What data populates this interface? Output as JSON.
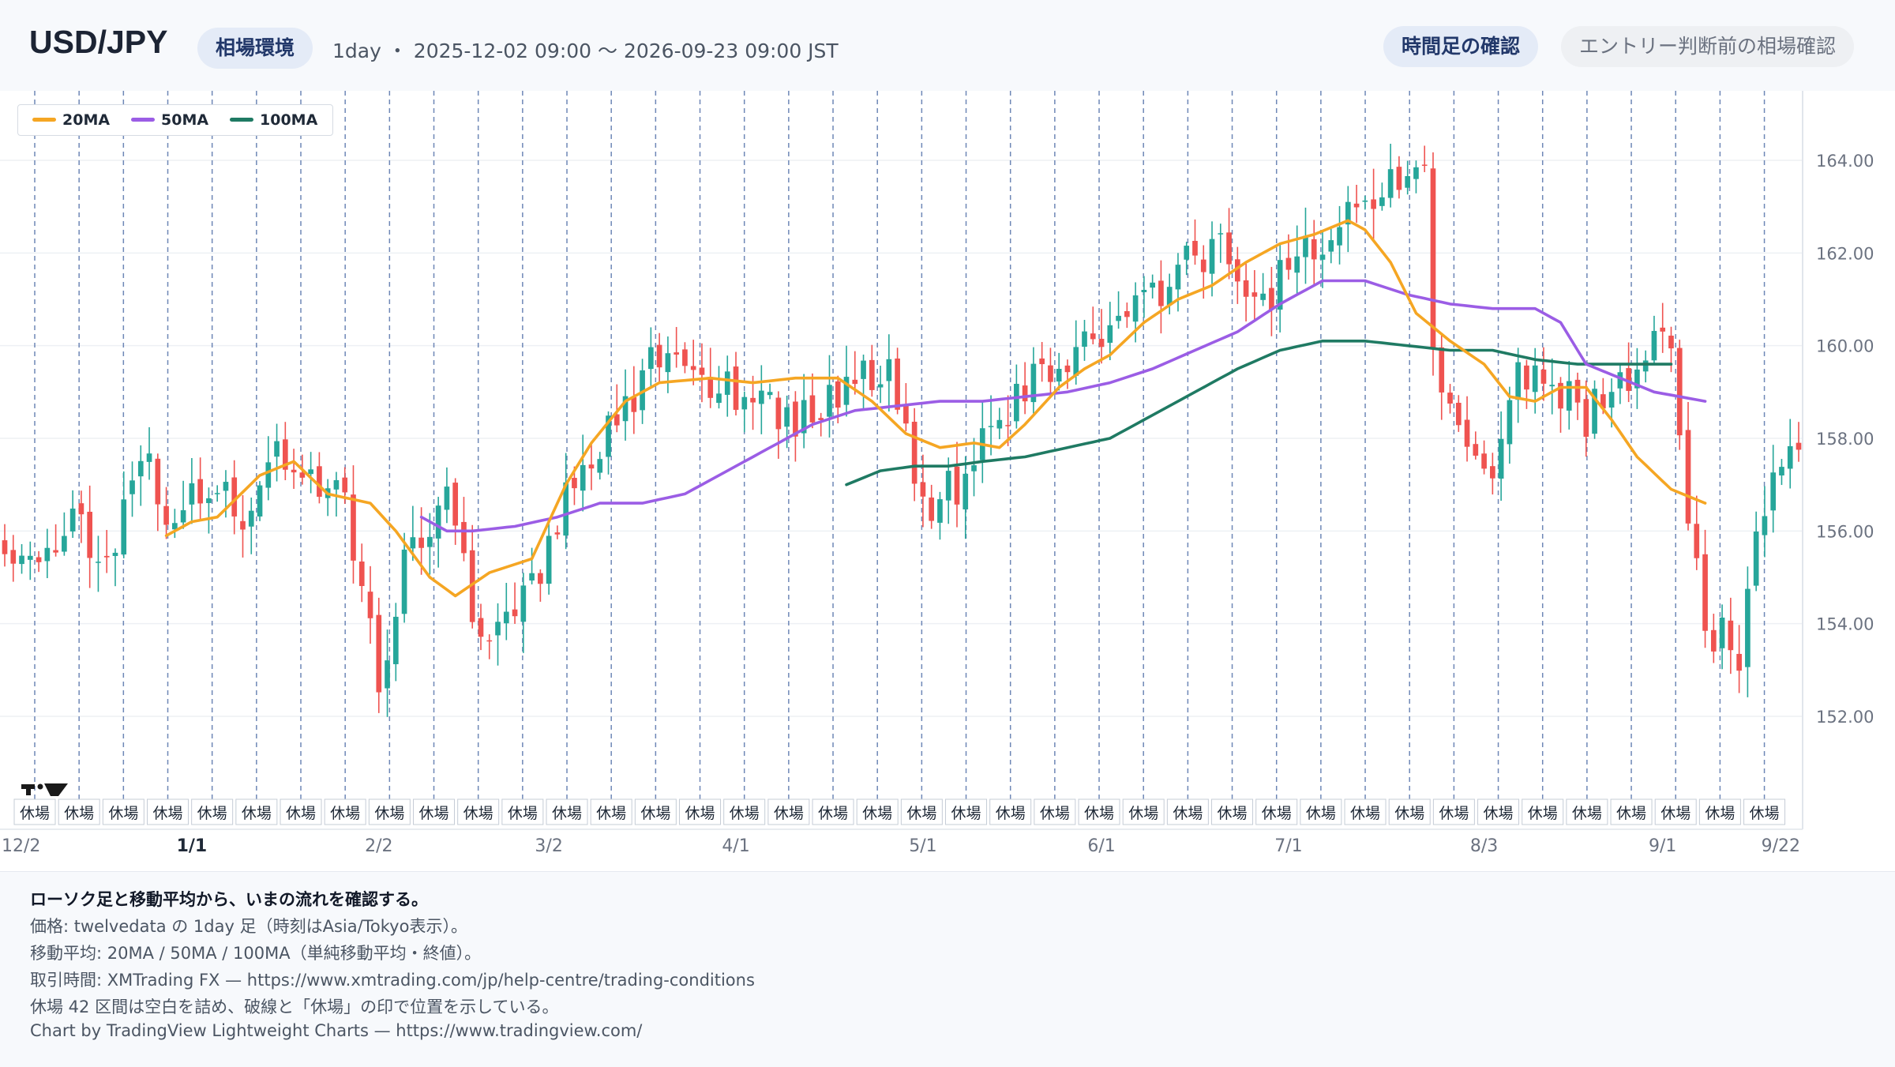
{
  "header": {
    "symbol": "USD/JPY",
    "env_label": "相場環境",
    "meta": "1day ・ 2025-12-02 09:00 〜 2026-09-23 09:00 JST",
    "timeframe_button": "時間足の確認",
    "entry_button": "エントリー判断前の相場確認"
  },
  "footer": {
    "heading": "ローソク足と移動平均から、いまの流れを確認する。",
    "line1": "価格: twelvedata の 1day 足（時刻はAsia/Tokyo表示）。",
    "line2": "移動平均: 20MA / 50MA / 100MA（単純移動平均・終値）。",
    "line3": "取引時間: XMTrading FX — https://www.xmtrading.com/jp/help-centre/trading-conditions",
    "line4": "休場 42 区間は空白を詰め、破線と「休場」の印で位置を示している。",
    "line5": "Chart by TradingView Lightweight Charts — https://www.tradingview.com/"
  },
  "colors": {
    "up": "#26a69a",
    "down": "#ef5350",
    "ma20": "#f5a623",
    "ma50": "#9b5de5",
    "ma100": "#1f7a63",
    "break_line": "#4a6aa5"
  },
  "chart_data": {
    "type": "candlestick",
    "y_range": [
      150.5,
      165.5
    ],
    "y_ticks": [
      "152.00",
      "154.00",
      "156.00",
      "158.00",
      "160.00",
      "162.00",
      "164.00"
    ],
    "x_labels": [
      {
        "label": "12/2",
        "index": 0,
        "bold": false
      },
      {
        "label": "1/1",
        "index": 22,
        "bold": true
      },
      {
        "label": "2/2",
        "index": 44,
        "bold": false
      },
      {
        "label": "3/2",
        "index": 64,
        "bold": false
      },
      {
        "label": "4/1",
        "index": 86,
        "bold": false
      },
      {
        "label": "5/1",
        "index": 108,
        "bold": false
      },
      {
        "label": "6/1",
        "index": 129,
        "bold": false
      },
      {
        "label": "7/1",
        "index": 151,
        "bold": false
      },
      {
        "label": "8/3",
        "index": 174,
        "bold": false
      },
      {
        "label": "9/1",
        "index": 195,
        "bold": false
      },
      {
        "label": "9/22",
        "index": 210,
        "bold": false
      }
    ],
    "bar_count": 212,
    "closed_label": "休場",
    "closed_count": 42,
    "close_anchors": [
      [
        0,
        156.0
      ],
      [
        4,
        155.0
      ],
      [
        8,
        156.6
      ],
      [
        12,
        155.2
      ],
      [
        16,
        157.5
      ],
      [
        20,
        156.2
      ],
      [
        24,
        156.9
      ],
      [
        28,
        156.3
      ],
      [
        32,
        157.8
      ],
      [
        36,
        157.2
      ],
      [
        40,
        156.5
      ],
      [
        44,
        153.0
      ],
      [
        48,
        155.8
      ],
      [
        52,
        156.8
      ],
      [
        56,
        153.5
      ],
      [
        60,
        154.0
      ],
      [
        64,
        155.8
      ],
      [
        68,
        157.5
      ],
      [
        72,
        158.4
      ],
      [
        76,
        159.5
      ],
      [
        80,
        159.6
      ],
      [
        84,
        159.2
      ],
      [
        88,
        159.0
      ],
      [
        92,
        158.5
      ],
      [
        96,
        158.6
      ],
      [
        100,
        159.3
      ],
      [
        104,
        159.6
      ],
      [
        108,
        156.6
      ],
      [
        112,
        157.0
      ],
      [
        116,
        158.4
      ],
      [
        120,
        159.1
      ],
      [
        124,
        159.6
      ],
      [
        128,
        160.2
      ],
      [
        132,
        160.5
      ],
      [
        136,
        161.3
      ],
      [
        140,
        161.8
      ],
      [
        144,
        162.2
      ],
      [
        148,
        160.8
      ],
      [
        152,
        162.0
      ],
      [
        156,
        162.4
      ],
      [
        160,
        163.0
      ],
      [
        164,
        163.8
      ],
      [
        167,
        163.6
      ],
      [
        168,
        160.0
      ],
      [
        170,
        158.4
      ],
      [
        174,
        157.0
      ],
      [
        178,
        159.4
      ],
      [
        182,
        159.3
      ],
      [
        186,
        158.5
      ],
      [
        190,
        159.2
      ],
      [
        194,
        160.1
      ],
      [
        196,
        159.8
      ],
      [
        198,
        156.0
      ],
      [
        200,
        154.0
      ],
      [
        204,
        153.4
      ],
      [
        206,
        155.5
      ],
      [
        208,
        157.3
      ],
      [
        211,
        158.0
      ]
    ],
    "ma20": {
      "name": "20MA",
      "points": [
        [
          19,
          155.9
        ],
        [
          22,
          156.2
        ],
        [
          25,
          156.3
        ],
        [
          30,
          157.2
        ],
        [
          34,
          157.5
        ],
        [
          38,
          156.8
        ],
        [
          43,
          156.6
        ],
        [
          46,
          156.0
        ],
        [
          50,
          155.0
        ],
        [
          53,
          154.6
        ],
        [
          57,
          155.1
        ],
        [
          62,
          155.4
        ],
        [
          66,
          157.0
        ],
        [
          69,
          157.9
        ],
        [
          73,
          158.8
        ],
        [
          77,
          159.2
        ],
        [
          83,
          159.3
        ],
        [
          88,
          159.2
        ],
        [
          93,
          159.3
        ],
        [
          98,
          159.3
        ],
        [
          102,
          158.8
        ],
        [
          106,
          158.1
        ],
        [
          110,
          157.8
        ],
        [
          114,
          157.9
        ],
        [
          117,
          157.8
        ],
        [
          120,
          158.3
        ],
        [
          124,
          159.1
        ],
        [
          127,
          159.5
        ],
        [
          130,
          159.8
        ],
        [
          134,
          160.5
        ],
        [
          138,
          161.0
        ],
        [
          142,
          161.3
        ],
        [
          146,
          161.8
        ],
        [
          150,
          162.2
        ],
        [
          154,
          162.4
        ],
        [
          158,
          162.7
        ],
        [
          160,
          162.5
        ],
        [
          163,
          161.8
        ],
        [
          166,
          160.7
        ],
        [
          170,
          160.1
        ],
        [
          174,
          159.6
        ],
        [
          177,
          158.9
        ],
        [
          180,
          158.8
        ],
        [
          183,
          159.1
        ],
        [
          186,
          159.1
        ],
        [
          189,
          158.4
        ],
        [
          192,
          157.6
        ],
        [
          196,
          156.9
        ],
        [
          200,
          156.6
        ]
      ]
    },
    "ma50": {
      "name": "50MA",
      "points": [
        [
          49,
          156.3
        ],
        [
          52,
          156.0
        ],
        [
          55,
          156.0
        ],
        [
          60,
          156.1
        ],
        [
          65,
          156.3
        ],
        [
          70,
          156.6
        ],
        [
          75,
          156.6
        ],
        [
          80,
          156.8
        ],
        [
          85,
          157.3
        ],
        [
          90,
          157.8
        ],
        [
          95,
          158.3
        ],
        [
          100,
          158.6
        ],
        [
          105,
          158.7
        ],
        [
          110,
          158.8
        ],
        [
          115,
          158.8
        ],
        [
          120,
          158.9
        ],
        [
          125,
          159.0
        ],
        [
          130,
          159.2
        ],
        [
          135,
          159.5
        ],
        [
          140,
          159.9
        ],
        [
          145,
          160.3
        ],
        [
          150,
          160.9
        ],
        [
          155,
          161.4
        ],
        [
          160,
          161.4
        ],
        [
          165,
          161.1
        ],
        [
          170,
          160.9
        ],
        [
          175,
          160.8
        ],
        [
          180,
          160.8
        ],
        [
          183,
          160.5
        ],
        [
          186,
          159.6
        ],
        [
          190,
          159.3
        ],
        [
          194,
          159.0
        ],
        [
          200,
          158.8
        ]
      ]
    },
    "ma100": {
      "name": "100MA",
      "points": [
        [
          99,
          157.0
        ],
        [
          103,
          157.3
        ],
        [
          107,
          157.4
        ],
        [
          111,
          157.4
        ],
        [
          115,
          157.5
        ],
        [
          120,
          157.6
        ],
        [
          125,
          157.8
        ],
        [
          130,
          158.0
        ],
        [
          135,
          158.5
        ],
        [
          140,
          159.0
        ],
        [
          145,
          159.5
        ],
        [
          150,
          159.9
        ],
        [
          155,
          160.1
        ],
        [
          160,
          160.1
        ],
        [
          165,
          160.0
        ],
        [
          170,
          159.9
        ],
        [
          175,
          159.9
        ],
        [
          180,
          159.7
        ],
        [
          185,
          159.6
        ],
        [
          189,
          159.6
        ],
        [
          192,
          159.6
        ],
        [
          196,
          159.6
        ]
      ]
    }
  }
}
